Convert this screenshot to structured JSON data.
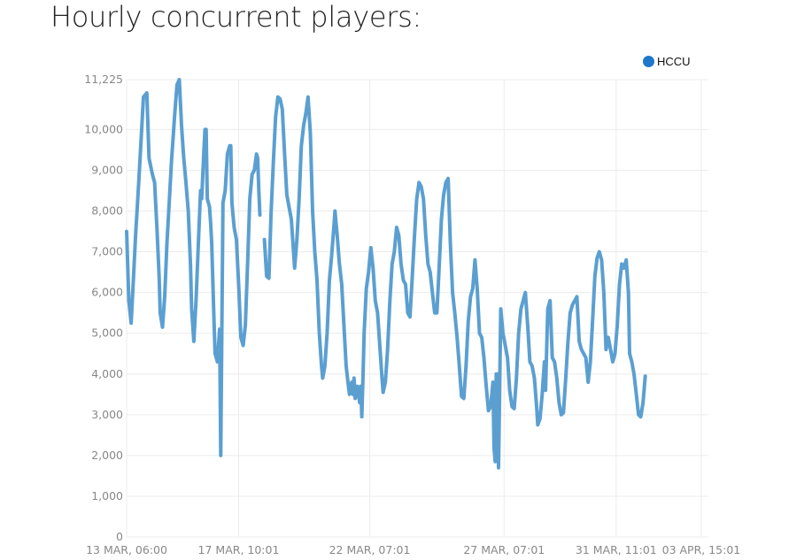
{
  "title": "Hourly concurrent players:",
  "legend": {
    "label": "HCCU",
    "color": "#1f77c9",
    "position": "top-right"
  },
  "line_color": "#5b9fd1",
  "chart_data": {
    "type": "line",
    "title": "Hourly concurrent players:",
    "xlabel": "",
    "ylabel": "",
    "ylim": [
      0,
      11225
    ],
    "grid": true,
    "y_ticks": [
      {
        "value": 0,
        "label": "0"
      },
      {
        "value": 1000,
        "label": "1,000"
      },
      {
        "value": 2000,
        "label": "2,000"
      },
      {
        "value": 3000,
        "label": "3,000"
      },
      {
        "value": 4000,
        "label": "4,000"
      },
      {
        "value": 5000,
        "label": "5,000"
      },
      {
        "value": 6000,
        "label": "6,000"
      },
      {
        "value": 7000,
        "label": "7,000"
      },
      {
        "value": 8000,
        "label": "8,000"
      },
      {
        "value": 9000,
        "label": "9,000"
      },
      {
        "value": 10000,
        "label": "10,000"
      },
      {
        "value": 11225,
        "label": "11,225"
      }
    ],
    "x_ticks": [
      {
        "hour": 0,
        "label": "13 MAR, 06:00"
      },
      {
        "hour": 100,
        "label": "17 MAR, 10:01"
      },
      {
        "hour": 217,
        "label": "22 MAR, 07:01"
      },
      {
        "hour": 337,
        "label": "27 MAR, 07:01"
      },
      {
        "hour": 437,
        "label": "31 MAR, 11:01"
      },
      {
        "hour": 513,
        "label": "03 APR, 15:01"
      }
    ],
    "x_range": [
      0,
      517
    ],
    "series": [
      {
        "name": "HCCU",
        "segments": [
          [
            [
              0,
              7500
            ],
            [
              2,
              5800
            ],
            [
              4,
              5250
            ],
            [
              6,
              6300
            ],
            [
              8,
              7400
            ],
            [
              10,
              8300
            ],
            [
              12,
              9300
            ],
            [
              15,
              10800
            ],
            [
              18,
              10900
            ],
            [
              20,
              9300
            ],
            [
              23,
              8900
            ],
            [
              25,
              8700
            ],
            [
              27,
              7600
            ],
            [
              29,
              6400
            ],
            [
              30,
              5500
            ],
            [
              32,
              5150
            ],
            [
              34,
              5900
            ],
            [
              36,
              7200
            ],
            [
              38,
              8200
            ],
            [
              40,
              9200
            ],
            [
              43,
              10400
            ],
            [
              45,
              11100
            ],
            [
              47,
              11225
            ],
            [
              49,
              10100
            ],
            [
              51,
              9300
            ],
            [
              53,
              8700
            ],
            [
              55,
              8000
            ],
            [
              57,
              6700
            ],
            [
              58,
              5600
            ],
            [
              60,
              4800
            ],
            [
              62,
              5800
            ],
            [
              64,
              7200
            ],
            [
              66,
              8500
            ],
            [
              67,
              8300
            ],
            [
              69,
              9500
            ],
            [
              70,
              10000
            ],
            [
              71,
              10000
            ],
            [
              72,
              8300
            ],
            [
              74,
              8100
            ],
            [
              75,
              7700
            ],
            [
              76,
              7200
            ],
            [
              78,
              5300
            ],
            [
              79,
              4500
            ],
            [
              81,
              4300
            ],
            [
              83,
              5100
            ],
            [
              84,
              2000
            ],
            [
              86,
              8200
            ],
            [
              88,
              8500
            ],
            [
              90,
              9400
            ],
            [
              92,
              9600
            ],
            [
              93,
              9600
            ],
            [
              94,
              8200
            ],
            [
              96,
              7600
            ],
            [
              98,
              7300
            ],
            [
              100,
              6200
            ],
            [
              102,
              4900
            ],
            [
              104,
              4700
            ],
            [
              106,
              5200
            ],
            [
              108,
              6700
            ],
            [
              110,
              8300
            ],
            [
              112,
              8900
            ],
            [
              114,
              9000
            ],
            [
              116,
              9400
            ],
            [
              117,
              9300
            ],
            [
              118,
              8500
            ],
            [
              119,
              7900
            ]
          ],
          [
            [
              123,
              7300
            ],
            [
              125,
              6400
            ],
            [
              127,
              6350
            ],
            [
              129,
              8000
            ],
            [
              131,
              9200
            ],
            [
              133,
              10300
            ],
            [
              135,
              10800
            ],
            [
              137,
              10750
            ],
            [
              139,
              10500
            ],
            [
              141,
              9400
            ],
            [
              143,
              8400
            ],
            [
              145,
              8100
            ],
            [
              147,
              7800
            ],
            [
              149,
              7000
            ],
            [
              150,
              6600
            ],
            [
              152,
              7300
            ],
            [
              154,
              8300
            ],
            [
              156,
              9600
            ],
            [
              158,
              10100
            ],
            [
              160,
              10400
            ],
            [
              162,
              10800
            ],
            [
              164,
              9900
            ],
            [
              166,
              8000
            ],
            [
              168,
              7000
            ],
            [
              170,
              6300
            ],
            [
              172,
              5000
            ],
            [
              174,
              4200
            ],
            [
              175,
              3900
            ],
            [
              177,
              4200
            ],
            [
              179,
              5000
            ],
            [
              181,
              6300
            ],
            [
              183,
              6900
            ],
            [
              185,
              7600
            ],
            [
              186,
              8000
            ],
            [
              188,
              7400
            ],
            [
              190,
              6700
            ],
            [
              192,
              6200
            ],
            [
              194,
              5200
            ],
            [
              196,
              4200
            ],
            [
              198,
              3700
            ],
            [
              199,
              3500
            ],
            [
              201,
              3800
            ],
            [
              202,
              3500
            ],
            [
              203,
              3900
            ],
            [
              204,
              3400
            ],
            [
              206,
              3700
            ],
            [
              208,
              3300
            ],
            [
              209,
              3700
            ],
            [
              210,
              2950
            ],
            [
              211,
              3900
            ],
            [
              212,
              5000
            ],
            [
              214,
              6100
            ],
            [
              216,
              6500
            ],
            [
              218,
              7100
            ],
            [
              220,
              6600
            ],
            [
              222,
              5800
            ],
            [
              224,
              5500
            ],
            [
              226,
              4700
            ],
            [
              228,
              3900
            ],
            [
              229,
              3550
            ],
            [
              231,
              3800
            ],
            [
              233,
              4600
            ],
            [
              235,
              5800
            ],
            [
              237,
              6700
            ],
            [
              239,
              7000
            ],
            [
              241,
              7600
            ],
            [
              243,
              7400
            ],
            [
              245,
              6700
            ],
            [
              247,
              6300
            ],
            [
              249,
              6200
            ],
            [
              251,
              5500
            ],
            [
              253,
              5400
            ],
            [
              255,
              6400
            ],
            [
              257,
              7400
            ],
            [
              259,
              8300
            ],
            [
              261,
              8700
            ],
            [
              263,
              8600
            ],
            [
              265,
              8300
            ],
            [
              267,
              7400
            ],
            [
              269,
              6700
            ],
            [
              271,
              6500
            ],
            [
              273,
              6000
            ],
            [
              275,
              5500
            ],
            [
              277,
              5500
            ],
            [
              279,
              6600
            ],
            [
              281,
              7800
            ],
            [
              283,
              8400
            ],
            [
              285,
              8700
            ],
            [
              287,
              8800
            ],
            [
              289,
              7200
            ],
            [
              291,
              6000
            ],
            [
              293,
              5500
            ],
            [
              295,
              4900
            ],
            [
              297,
              4200
            ],
            [
              299,
              3450
            ],
            [
              301,
              3400
            ],
            [
              303,
              4200
            ],
            [
              305,
              5300
            ],
            [
              307,
              5900
            ],
            [
              309,
              6100
            ],
            [
              311,
              6800
            ],
            [
              313,
              6100
            ],
            [
              315,
              5000
            ],
            [
              317,
              4900
            ],
            [
              319,
              4400
            ],
            [
              321,
              3700
            ],
            [
              323,
              3100
            ],
            [
              325,
              3200
            ],
            [
              327,
              3800
            ],
            [
              328,
              2200
            ],
            [
              329,
              1850
            ],
            [
              330,
              4000
            ],
            [
              331,
              4000
            ],
            [
              332,
              1700
            ],
            [
              333,
              3500
            ],
            [
              334,
              5600
            ],
            [
              336,
              5000
            ],
            [
              338,
              4700
            ],
            [
              340,
              4400
            ],
            [
              342,
              3600
            ],
            [
              344,
              3200
            ],
            [
              346,
              3150
            ],
            [
              348,
              3900
            ],
            [
              350,
              5000
            ],
            [
              352,
              5600
            ],
            [
              354,
              5800
            ],
            [
              356,
              6000
            ],
            [
              358,
              5200
            ],
            [
              360,
              4300
            ],
            [
              362,
              4200
            ],
            [
              364,
              3900
            ],
            [
              366,
              3200
            ],
            [
              367,
              2750
            ],
            [
              369,
              2900
            ],
            [
              371,
              3500
            ],
            [
              373,
              4300
            ],
            [
              374,
              3600
            ],
            [
              376,
              5600
            ],
            [
              378,
              5800
            ],
            [
              380,
              4400
            ],
            [
              382,
              4300
            ],
            [
              384,
              3900
            ],
            [
              386,
              3300
            ],
            [
              388,
              3000
            ],
            [
              390,
              3050
            ],
            [
              392,
              3900
            ],
            [
              394,
              4800
            ],
            [
              396,
              5500
            ],
            [
              398,
              5700
            ],
            [
              400,
              5800
            ],
            [
              402,
              5900
            ],
            [
              404,
              4800
            ],
            [
              406,
              4600
            ],
            [
              408,
              4500
            ],
            [
              410,
              4400
            ],
            [
              412,
              3800
            ],
            [
              414,
              4300
            ],
            [
              416,
              5300
            ],
            [
              418,
              6400
            ],
            [
              420,
              6850
            ],
            [
              422,
              7000
            ],
            [
              424,
              6800
            ],
            [
              426,
              6000
            ],
            [
              428,
              4600
            ],
            [
              430,
              4900
            ],
            [
              432,
              4600
            ],
            [
              434,
              4300
            ],
            [
              436,
              4500
            ],
            [
              438,
              5200
            ],
            [
              440,
              6200
            ],
            [
              442,
              6700
            ],
            [
              444,
              6600
            ],
            [
              446,
              6800
            ],
            [
              448,
              6000
            ],
            [
              449,
              4500
            ],
            [
              451,
              4300
            ],
            [
              453,
              4000
            ],
            [
              455,
              3500
            ],
            [
              457,
              3000
            ],
            [
              459,
              2950
            ],
            [
              461,
              3300
            ],
            [
              463,
              3950
            ]
          ]
        ]
      }
    ]
  }
}
